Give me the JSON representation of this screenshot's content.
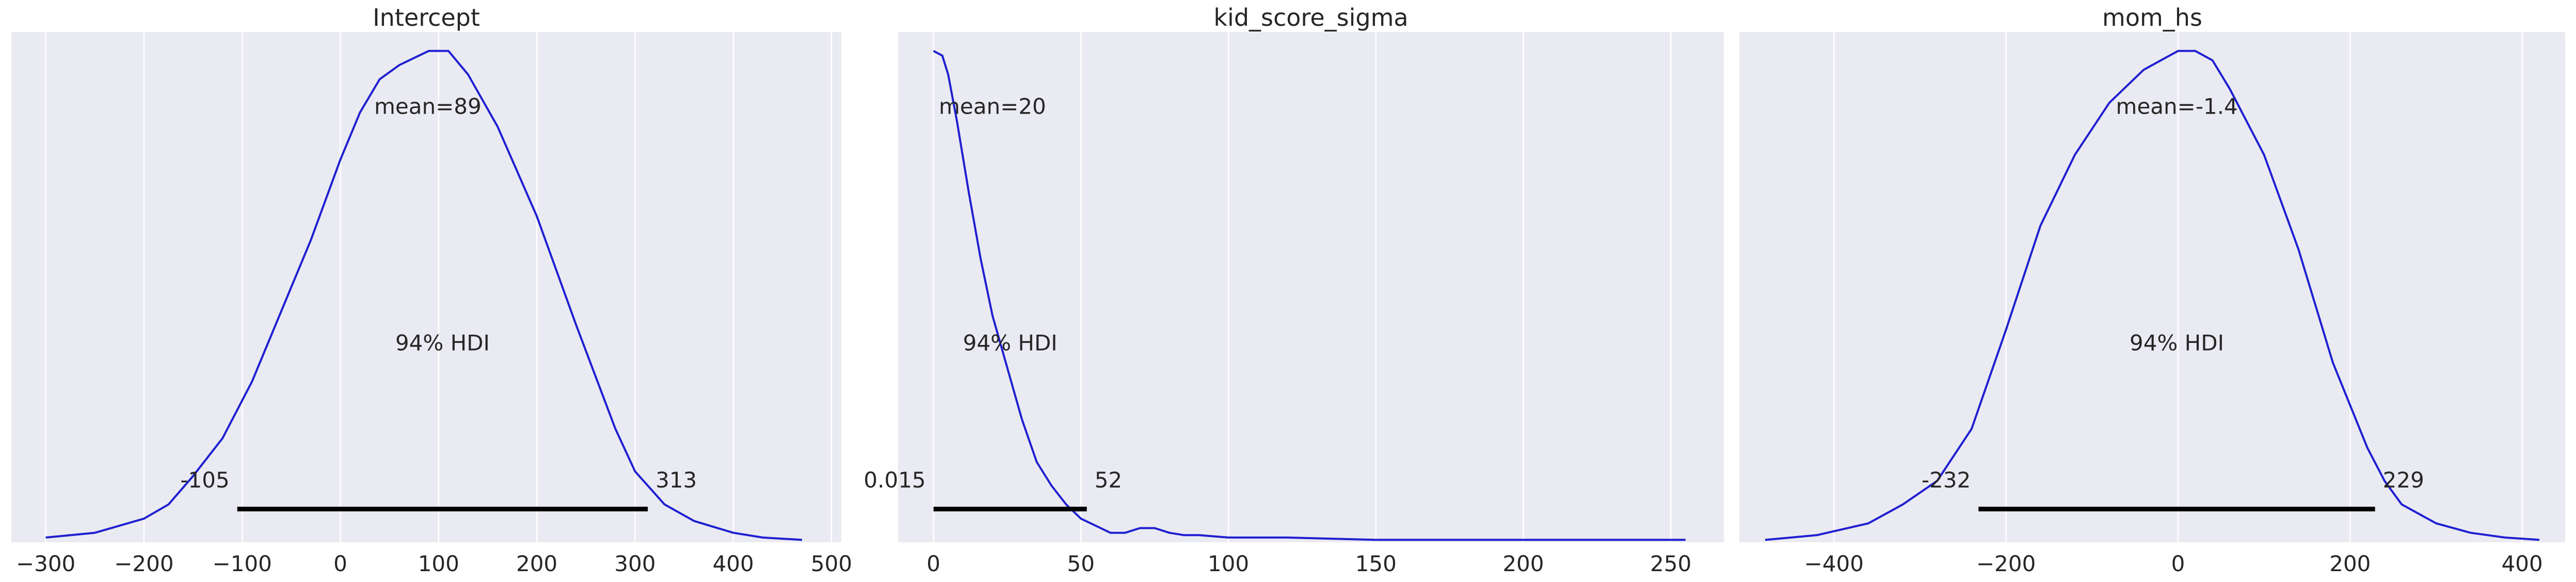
{
  "chart_data": [
    {
      "type": "area",
      "title": "Intercept",
      "xlim": [
        -335,
        510
      ],
      "ylim": [
        0,
        1.08
      ],
      "xticks": [
        -300,
        -200,
        -100,
        0,
        100,
        200,
        300,
        400,
        500
      ],
      "xticklabels": [
        "−300",
        "−200",
        "−100",
        "0",
        "100",
        "200",
        "300",
        "400",
        "500"
      ],
      "mean": 89,
      "mean_label": "mean=89",
      "hdi_label": "94% HDI",
      "hdi": [
        -105,
        313
      ],
      "hdi_low_label": "-105",
      "hdi_high_label": "313",
      "series": [
        {
          "x": [
            -300,
            -250,
            -200,
            -175,
            -150,
            -120,
            -90,
            -60,
            -30,
            0,
            20,
            40,
            60,
            80,
            90,
            100,
            110,
            130,
            160,
            200,
            240,
            280,
            300,
            330,
            360,
            400,
            430,
            470
          ],
          "y": [
            0.01,
            0.02,
            0.05,
            0.08,
            0.14,
            0.22,
            0.34,
            0.49,
            0.64,
            0.81,
            0.91,
            0.98,
            1.01,
            1.03,
            1.04,
            1.04,
            1.04,
            0.99,
            0.88,
            0.69,
            0.46,
            0.24,
            0.15,
            0.08,
            0.045,
            0.02,
            0.01,
            0.005
          ]
        }
      ]
    },
    {
      "type": "area",
      "title": "kid_score_sigma",
      "xlim": [
        -12,
        268
      ],
      "ylim": [
        0,
        1.08
      ],
      "xticks": [
        0,
        50,
        100,
        150,
        200,
        250
      ],
      "xticklabels": [
        "0",
        "50",
        "100",
        "150",
        "200",
        "250"
      ],
      "mean": 20,
      "mean_label": "mean=20",
      "hdi_label": "94% HDI",
      "hdi": [
        0.015,
        52
      ],
      "hdi_low_label": "0.015",
      "hdi_high_label": "52",
      "series": [
        {
          "x": [
            0,
            3,
            5,
            8,
            12,
            16,
            20,
            25,
            30,
            35,
            40,
            45,
            50,
            55,
            60,
            65,
            70,
            75,
            80,
            85,
            90,
            100,
            120,
            150,
            200,
            255
          ],
          "y": [
            1.04,
            1.03,
            0.99,
            0.89,
            0.74,
            0.6,
            0.48,
            0.37,
            0.26,
            0.17,
            0.12,
            0.08,
            0.05,
            0.035,
            0.02,
            0.02,
            0.03,
            0.03,
            0.02,
            0.015,
            0.015,
            0.01,
            0.01,
            0.005,
            0.005,
            0.005
          ]
        }
      ]
    },
    {
      "type": "area",
      "title": "mom_hs",
      "xlim": [
        -510,
        450
      ],
      "ylim": [
        0,
        1.08
      ],
      "xticks": [
        -400,
        -200,
        0,
        200,
        400
      ],
      "xticklabels": [
        "−400",
        "−200",
        "0",
        "200",
        "400"
      ],
      "mean": -1.4,
      "mean_label": "mean=-1.4",
      "hdi_label": "94% HDI",
      "hdi": [
        -232,
        229
      ],
      "hdi_low_label": "-232",
      "hdi_high_label": "229",
      "series": [
        {
          "x": [
            -480,
            -420,
            -360,
            -320,
            -280,
            -240,
            -200,
            -160,
            -120,
            -80,
            -40,
            0,
            20,
            40,
            60,
            100,
            140,
            180,
            220,
            240,
            260,
            300,
            340,
            380,
            420
          ],
          "y": [
            0.005,
            0.015,
            0.04,
            0.08,
            0.13,
            0.24,
            0.45,
            0.67,
            0.82,
            0.93,
            1.0,
            1.04,
            1.04,
            1.02,
            0.96,
            0.82,
            0.62,
            0.38,
            0.2,
            0.13,
            0.08,
            0.04,
            0.02,
            0.01,
            0.005
          ]
        }
      ]
    }
  ],
  "colors": {
    "panel_bg": "#eaeaf2",
    "grid": "#ffffff",
    "curve": "#1f1fd1",
    "hdi_line": "#000000",
    "text": "#262626"
  }
}
